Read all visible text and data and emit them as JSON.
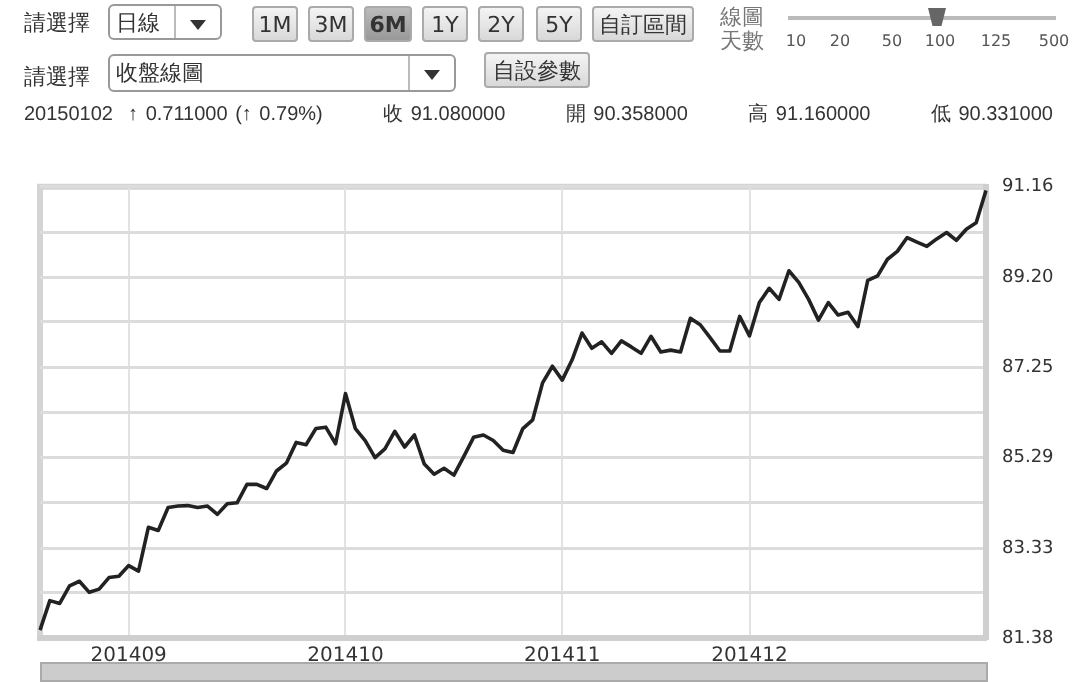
{
  "chart_data": {
    "type": "line",
    "subtitle": "20150102  ↑ 0.711000 (↑ 0.79%)        收 91.080000        開 90.358000        高 91.160000        低 90.331000",
    "annotations": [
      "請選擇",
      "日線",
      "1M",
      "3M",
      "6M",
      "1Y",
      "2Y",
      "5Y",
      "自訂區間",
      "線圖天數",
      "10",
      "20",
      "50",
      "100",
      "125",
      "500",
      "請選擇",
      "收盤線圖",
      "自設參數"
    ],
    "categories": [
      null,
      null,
      null,
      null,
      null,
      null,
      null,
      null,
      null,
      "201409",
      null,
      null,
      null,
      null,
      null,
      null,
      null,
      null,
      null,
      null,
      null,
      null,
      null,
      null,
      null,
      null,
      null,
      null,
      null,
      null,
      null,
      "201410",
      null,
      null,
      null,
      null,
      null,
      null,
      null,
      null,
      null,
      null,
      null,
      null,
      null,
      null,
      null,
      null,
      null,
      null,
      null,
      null,
      null,
      "201411",
      null,
      null,
      null,
      null,
      null,
      null,
      null,
      null,
      null,
      null,
      null,
      null,
      null,
      null,
      null,
      null,
      null,
      null,
      "201412",
      null,
      null,
      null,
      null,
      null,
      null,
      null,
      null,
      null,
      null,
      null,
      null,
      null,
      null,
      null,
      null,
      null,
      null,
      null,
      null,
      null,
      null,
      null,
      null
    ],
    "series": [
      {
        "color": "#222222",
        "values": [
          81.55,
          82.19,
          82.13,
          82.51,
          82.61,
          82.37,
          82.44,
          82.69,
          82.72,
          82.95,
          82.83,
          83.78,
          83.71,
          84.21,
          84.24,
          84.25,
          84.21,
          84.24,
          84.06,
          84.29,
          84.31,
          84.71,
          84.71,
          84.62,
          85.0,
          85.17,
          85.62,
          85.57,
          85.92,
          85.95,
          85.59,
          86.68,
          85.92,
          85.66,
          85.29,
          85.48,
          85.86,
          85.52,
          85.78,
          85.15,
          84.93,
          85.06,
          84.91,
          85.31,
          85.73,
          85.78,
          85.66,
          85.45,
          85.4,
          85.92,
          86.11,
          86.91,
          87.27,
          86.97,
          87.41,
          87.99,
          87.66,
          87.8,
          87.55,
          87.82,
          87.69,
          87.55,
          87.92,
          87.58,
          87.62,
          87.58,
          88.31,
          88.17,
          87.89,
          87.6,
          87.6,
          88.35,
          87.93,
          88.65,
          88.96,
          88.72,
          89.34,
          89.09,
          88.72,
          88.27,
          88.65,
          88.38,
          88.44,
          88.13,
          89.13,
          89.23,
          89.59,
          89.76,
          90.06,
          89.96,
          89.87,
          90.03,
          90.17,
          90.0,
          90.24,
          90.38,
          91.08
        ]
      }
    ],
    "ylim": [
      81.38,
      91.16
    ],
    "yticks": [
      81.38,
      {
        "value": 82.36,
        "label": null
      },
      83.33,
      {
        "value": 84.31,
        "label": null
      },
      85.29,
      {
        "value": 86.27,
        "label": null
      },
      87.25,
      {
        "value": 88.23,
        "label": null
      },
      {
        "value": 89.2,
        "label": "89.20"
      },
      {
        "value": 90.18,
        "label": null
      },
      91.16
    ],
    "grid": true,
    "legend": false,
    "marker": "none",
    "line_style": "solid"
  }
}
